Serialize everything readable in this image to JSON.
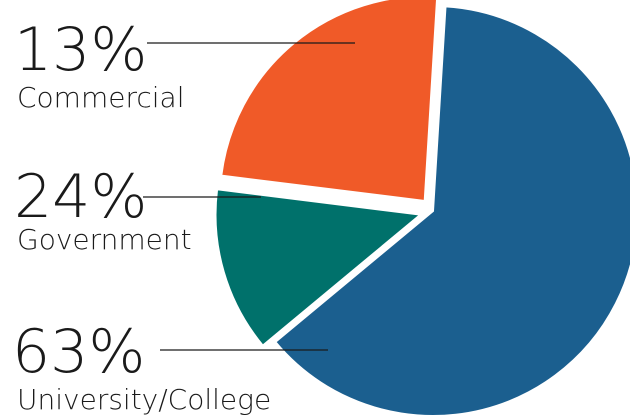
{
  "chart_data": {
    "type": "pie",
    "title": "",
    "slices": [
      {
        "label": "University/College",
        "value": 63,
        "value_label": "63%",
        "color": "#1B5F8F",
        "exploded": false
      },
      {
        "label": "Commercial",
        "value": 13,
        "value_label": "13%",
        "color": "#00716B",
        "exploded": true
      },
      {
        "label": "Government",
        "value": 24,
        "value_label": "24%",
        "color": "#F05A28",
        "exploded": true
      }
    ],
    "legend": "none",
    "data_labels": "left-side with leader lines"
  },
  "colors": {
    "text": "#1a1a1a",
    "leader_line": "#1a1a1a",
    "background": "#ffffff"
  }
}
